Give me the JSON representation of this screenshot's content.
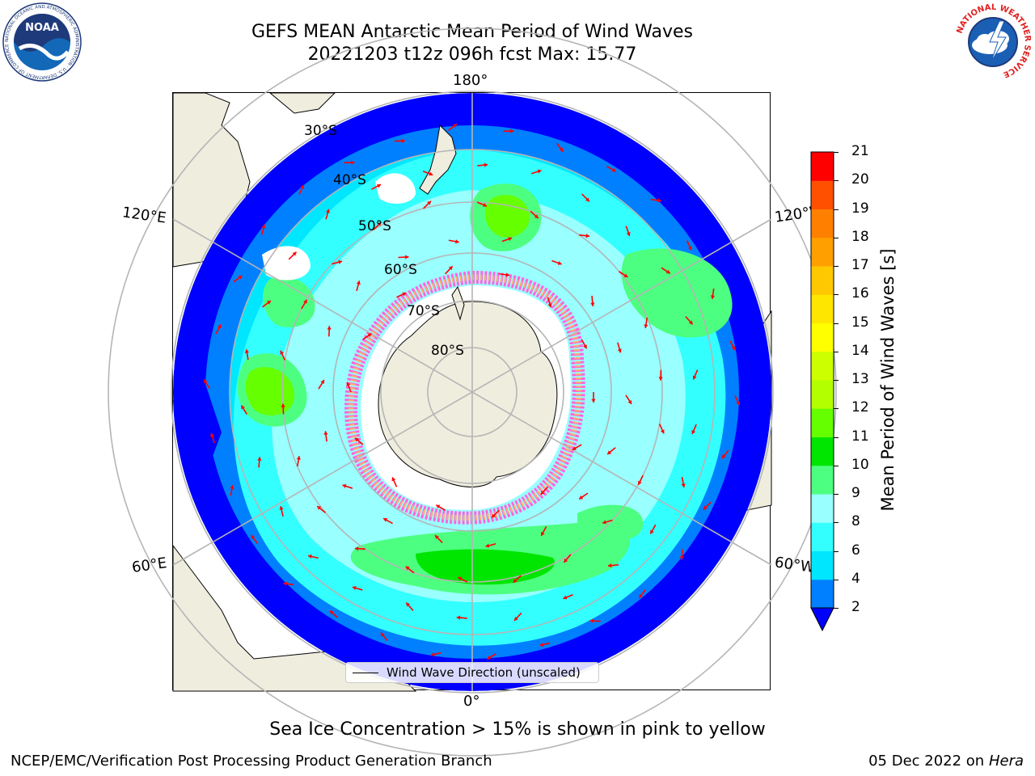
{
  "header": {
    "title_line1": "GEFS MEAN Antarctic Mean Period of Wind Waves",
    "title_line2": "20221203 t12z 096h fcst   Max: 15.77",
    "left_logo_text": "NOAA",
    "left_logo_ring": "NATIONAL OCEANIC AND ATMOSPHERIC ADMINISTRATION · U.S. DEPARTMENT OF COMMERCE",
    "right_logo_ring": "NATIONAL WEATHER SERVICE"
  },
  "map": {
    "projection": "south-polar-stereographic",
    "lon_labels": {
      "top": "180°",
      "bottom": "0°",
      "left_upper": "120°E",
      "left_lower": "60°E",
      "right_upper": "120°W",
      "right_lower": "60°W"
    },
    "lat_labels": [
      "30°S",
      "40°S",
      "50°S",
      "60°S",
      "70°S",
      "80°S"
    ],
    "legend_label": "Wind Wave Direction (unscaled)",
    "colors": {
      "land": "#efedde",
      "coast": "#000000",
      "grid": "#b5b5b5",
      "arrow": "#ff0000",
      "ice": "#ffffff",
      "ice_edge_pink": "#ff66dd",
      "ice_edge_orange": "#ffb070"
    }
  },
  "colorbar": {
    "label": "Mean Period of Wind Waves [s]",
    "levels": [
      2,
      4,
      6,
      8,
      9,
      10,
      11,
      12,
      13,
      14,
      15,
      16,
      17,
      18,
      19,
      20,
      21
    ],
    "tick_labels": [
      "2",
      "4",
      "6",
      "8",
      "9",
      "10",
      "11",
      "12",
      "13",
      "14",
      "15",
      "16",
      "17",
      "18",
      "19",
      "20",
      "21"
    ],
    "colors": [
      "#0080ff",
      "#00e6ff",
      "#33ffff",
      "#99ffff",
      "#4dff80",
      "#00e600",
      "#66ff00",
      "#b3ff00",
      "#ccff00",
      "#ffff00",
      "#ffe600",
      "#ffc800",
      "#ffa000",
      "#ff8000",
      "#ff5000",
      "#ff0000"
    ],
    "under_color": "#0000ff"
  },
  "footer": {
    "note": "Sea Ice Concentration > 15% is shown in pink to yellow",
    "credit": "NCEP/EMC/Verification Post Processing Product Generation Branch",
    "run_date": "05 Dec 2022 on",
    "machine": "Hera"
  }
}
